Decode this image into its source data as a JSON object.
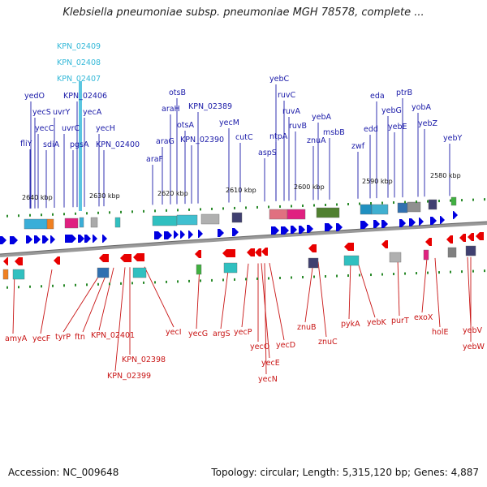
{
  "header": {
    "title": "Klebsiella pneumoniae subsp. pneumoniae MGH 78578, complete ..."
  },
  "footer": {
    "accession": "Accession: NC_009648",
    "summary": "Topology: circular; Length: 5,315,120 bp; Genes: 4,887"
  },
  "colors": {
    "forward": "#1a1aa8",
    "reverse": "#c81414",
    "highlight": "#33b8d8",
    "forward_arrow": "#0000e0",
    "reverse_arrow": "#e80000",
    "backbone": "#888888"
  },
  "scale_ticks": [
    "2640 kbp",
    "2630 kbp",
    "2620 kbp",
    "2610 kbp",
    "2600 kbp",
    "2590 kbp",
    "2580 kbp"
  ],
  "forward_genes": [
    "fliY",
    "yedO",
    "yecS",
    "yecC",
    "sdiA",
    "uvrY",
    "uvrC",
    "pgsA",
    "KPN_02406",
    "yecA",
    "yecH",
    "KPN_02400",
    "araF",
    "araG",
    "araH",
    "otsB",
    "otsA",
    "KPN_02389",
    "KPN_02390",
    "yecM",
    "cutC",
    "aspS",
    "ntpA",
    "yebC",
    "ruvC",
    "ruvA",
    "ruvB",
    "znuA",
    "yebA",
    "msbB",
    "zwf",
    "edd",
    "eda",
    "yebG",
    "ptrB",
    "yebE",
    "yobA",
    "yebZ",
    "yebY"
  ],
  "highlight_genes": [
    "KPN_02409",
    "KPN_02408",
    "KPN_02407"
  ],
  "reverse_genes": [
    "amyA",
    "yecF",
    "tyrP",
    "ftn",
    "KPN_02401",
    "KPN_02398",
    "KPN_02399",
    "yecI",
    "yecG",
    "argS",
    "yecP",
    "yecO",
    "yecE",
    "yecN",
    "yecD",
    "znuB",
    "znuC",
    "pykA",
    "yebK",
    "purT",
    "exoX",
    "holE",
    "yebV",
    "yebW"
  ]
}
